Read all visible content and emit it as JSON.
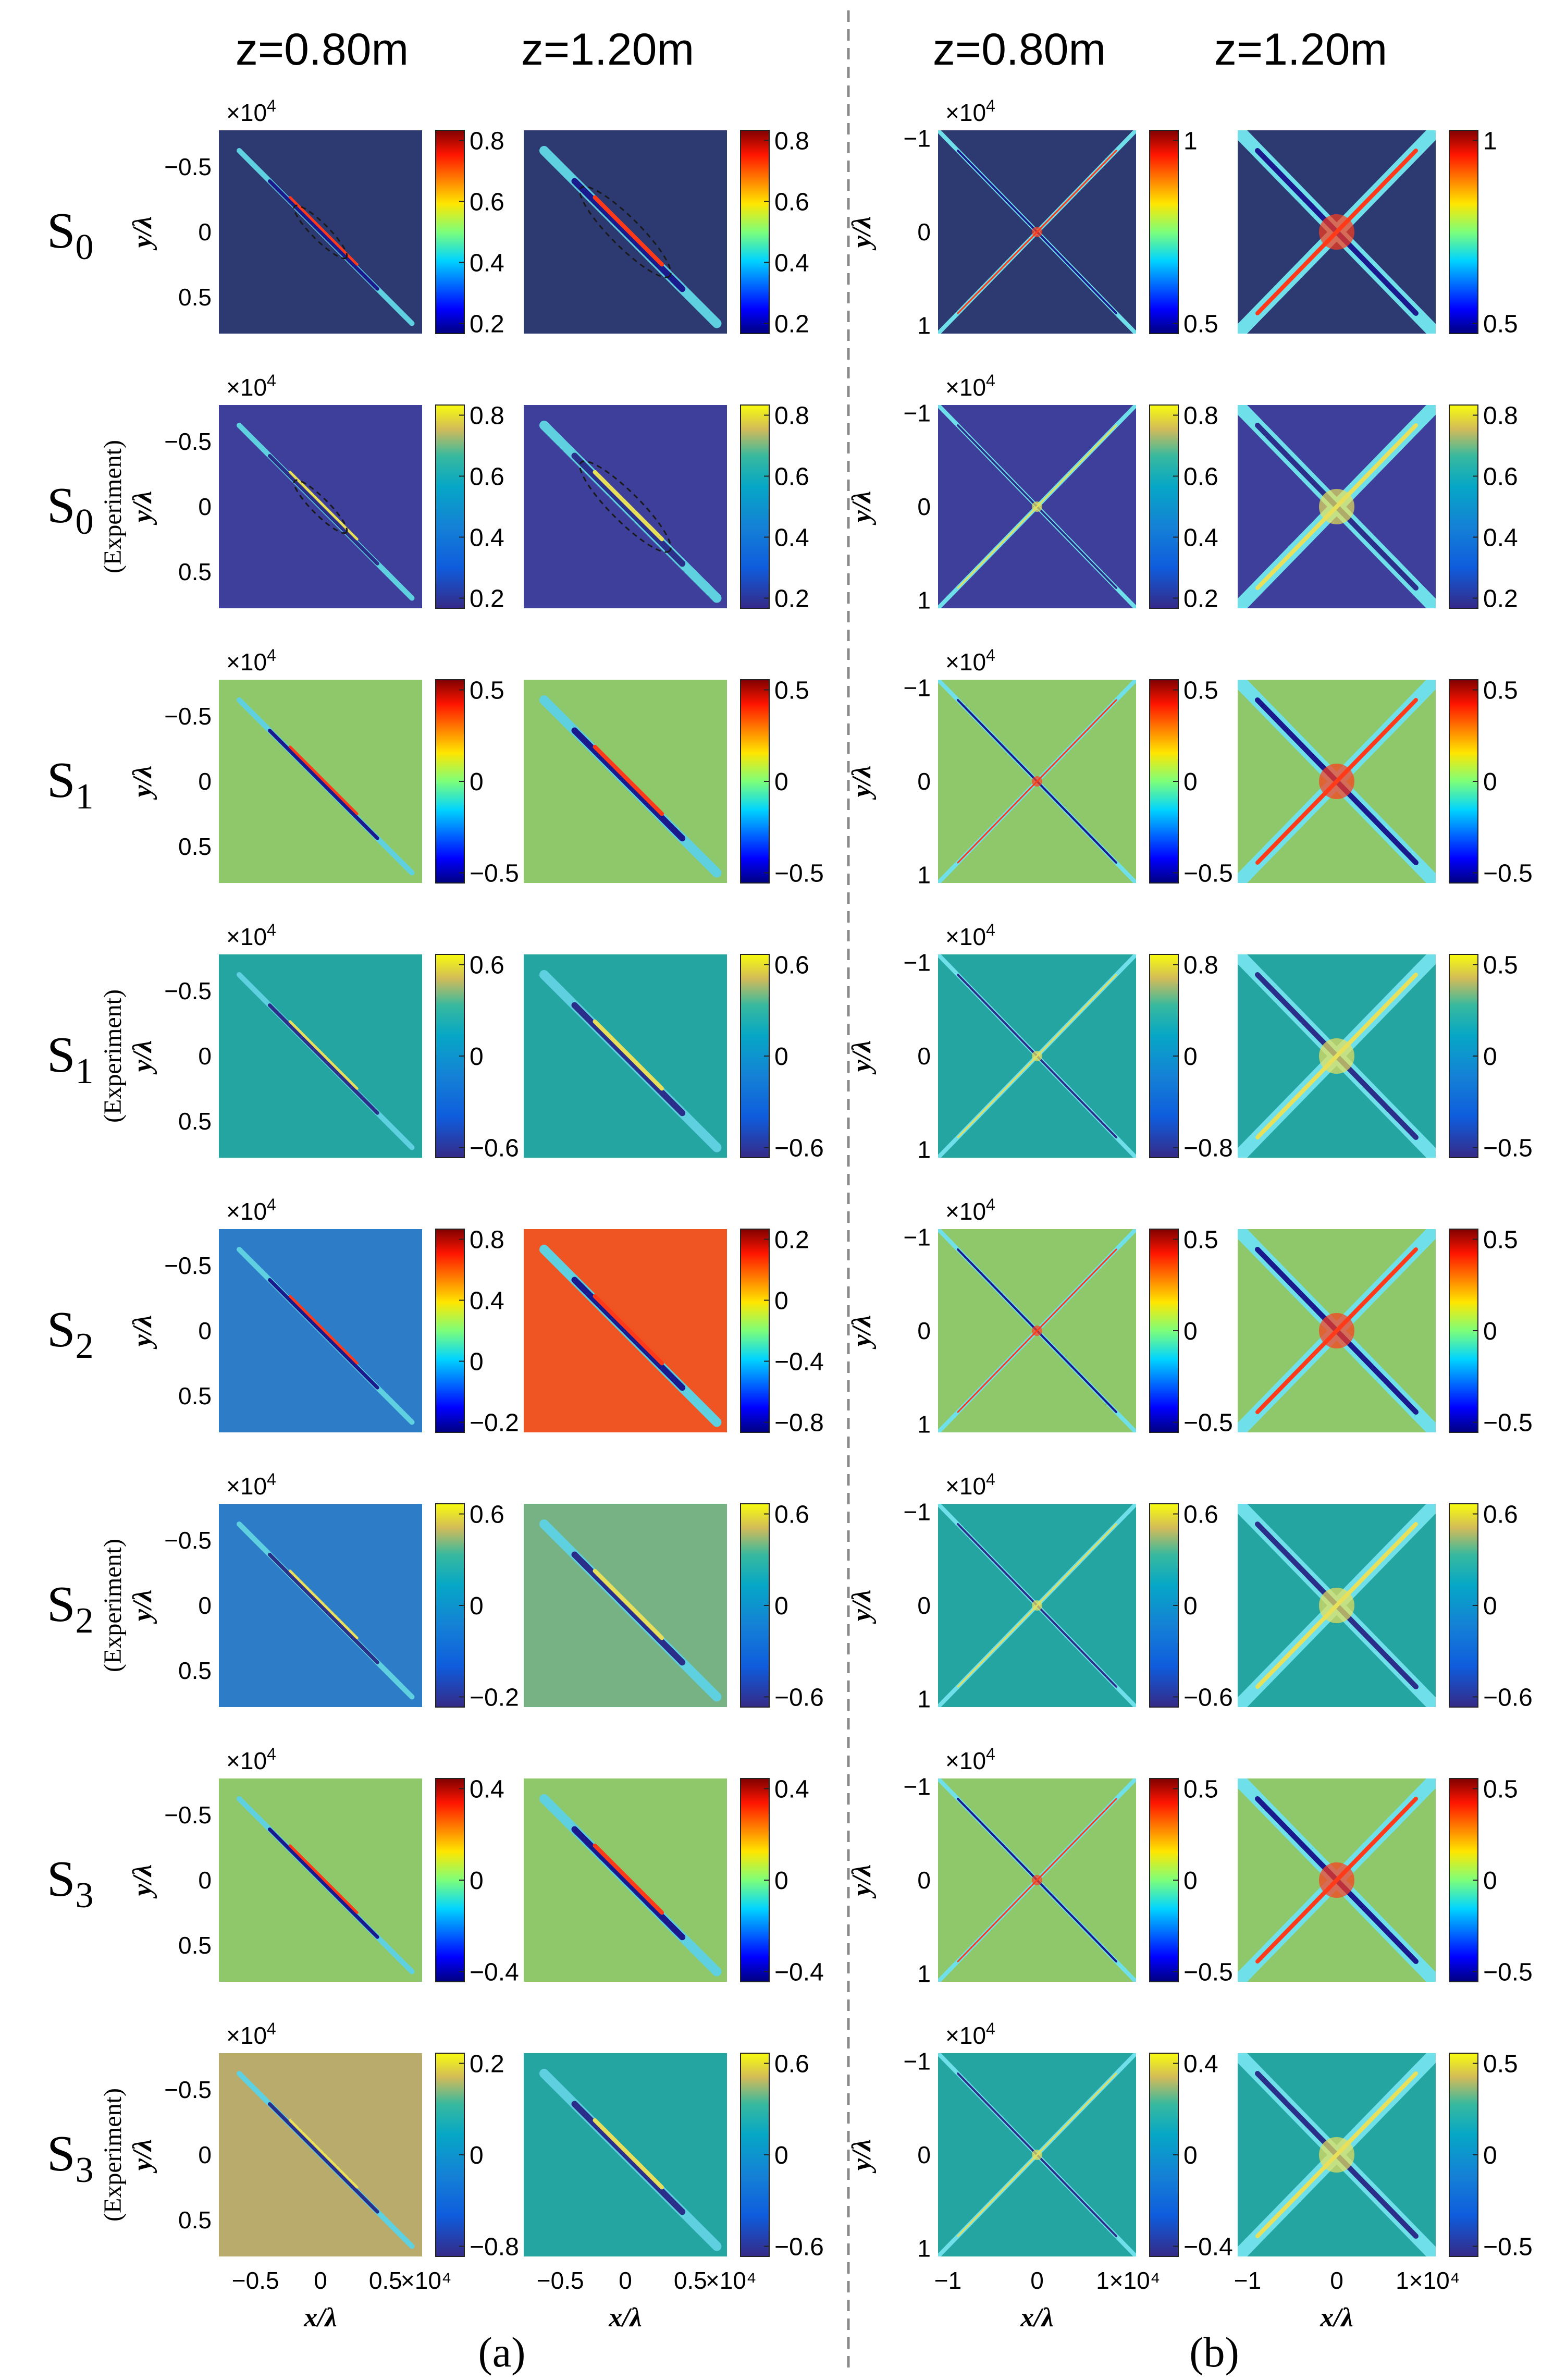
{
  "figure": {
    "column_headers": [
      "z=0.80m",
      "z=1.20m",
      "z=0.80m",
      "z=1.20m"
    ],
    "exp_label": "(Experiment)",
    "y_axis_label": "y/λ",
    "x_axis_label": "x/λ",
    "exponent_label": "×10",
    "exponent_power": "4",
    "panel_a_label": "(a)",
    "panel_b_label": "(b)",
    "colors": {
      "background": "#ffffff",
      "divider": "#8a8a8a",
      "jet_navy": "#2d3a72",
      "jet_green": "#8fc86a",
      "jet_red": "#ee5522",
      "parula_blue": "#3d3f9a",
      "parula_teal": "#25a5a2",
      "parula_blue2": "#2c7cc8",
      "olive": "#b8ab6c",
      "sage": "#77b285"
    }
  },
  "chart_data": {
    "type": "heatmap",
    "panels": {
      "a": {
        "x_ticks": [
          "−0.5",
          "0",
          "0.5",
          "×10⁴"
        ],
        "y_ticks": [
          "−0.5",
          "0",
          "0.5"
        ]
      },
      "b": {
        "x_ticks": [
          "−1",
          "0",
          "1×10⁴"
        ],
        "y_ticks": [
          "−1",
          "0",
          "1"
        ]
      }
    },
    "rows": [
      {
        "label": "S",
        "subscript": "0",
        "experiment": false,
        "maps": [
          {
            "panel": "a",
            "z": "z=0.80m",
            "colorbar_ticks": [
              "0.8",
              "0.6",
              "0.4",
              "0.2"
            ]
          },
          {
            "panel": "a",
            "z": "z=1.20m",
            "colorbar_ticks": [
              "0.8",
              "0.6",
              "0.4",
              "0.2"
            ]
          },
          {
            "panel": "b",
            "z": "z=0.80m",
            "colorbar_ticks": [
              "1",
              "0.5"
            ]
          },
          {
            "panel": "b",
            "z": "z=1.20m",
            "colorbar_ticks": [
              "1",
              "0.5"
            ]
          }
        ]
      },
      {
        "label": "S",
        "subscript": "0",
        "experiment": true,
        "maps": [
          {
            "panel": "a",
            "z": "z=0.80m",
            "colorbar_ticks": [
              "0.8",
              "0.6",
              "0.4",
              "0.2"
            ]
          },
          {
            "panel": "a",
            "z": "z=1.20m",
            "colorbar_ticks": [
              "0.8",
              "0.6",
              "0.4",
              "0.2"
            ]
          },
          {
            "panel": "b",
            "z": "z=0.80m",
            "colorbar_ticks": [
              "0.8",
              "0.6",
              "0.4",
              "0.2"
            ]
          },
          {
            "panel": "b",
            "z": "z=1.20m",
            "colorbar_ticks": [
              "0.8",
              "0.6",
              "0.4",
              "0.2"
            ]
          }
        ]
      },
      {
        "label": "S",
        "subscript": "1",
        "experiment": false,
        "maps": [
          {
            "panel": "a",
            "z": "z=0.80m",
            "colorbar_ticks": [
              "0.5",
              "0",
              "−0.5"
            ]
          },
          {
            "panel": "a",
            "z": "z=1.20m",
            "colorbar_ticks": [
              "0.5",
              "0",
              "−0.5"
            ]
          },
          {
            "panel": "b",
            "z": "z=0.80m",
            "colorbar_ticks": [
              "0.5",
              "0",
              "−0.5"
            ]
          },
          {
            "panel": "b",
            "z": "z=1.20m",
            "colorbar_ticks": [
              "0.5",
              "0",
              "−0.5"
            ]
          }
        ]
      },
      {
        "label": "S",
        "subscript": "1",
        "experiment": true,
        "maps": [
          {
            "panel": "a",
            "z": "z=0.80m",
            "colorbar_ticks": [
              "0.6",
              "0",
              "−0.6"
            ]
          },
          {
            "panel": "a",
            "z": "z=1.20m",
            "colorbar_ticks": [
              "0.6",
              "0",
              "−0.6"
            ]
          },
          {
            "panel": "b",
            "z": "z=0.80m",
            "colorbar_ticks": [
              "0.8",
              "0",
              "−0.8"
            ]
          },
          {
            "panel": "b",
            "z": "z=1.20m",
            "colorbar_ticks": [
              "0.5",
              "0",
              "−0.5"
            ]
          }
        ]
      },
      {
        "label": "S",
        "subscript": "2",
        "experiment": false,
        "maps": [
          {
            "panel": "a",
            "z": "z=0.80m",
            "colorbar_ticks": [
              "0.8",
              "0.4",
              "0",
              "−0.2"
            ]
          },
          {
            "panel": "a",
            "z": "z=1.20m",
            "colorbar_ticks": [
              "0.2",
              "0",
              "−0.4",
              "−0.8"
            ]
          },
          {
            "panel": "b",
            "z": "z=0.80m",
            "colorbar_ticks": [
              "0.5",
              "0",
              "−0.5"
            ]
          },
          {
            "panel": "b",
            "z": "z=1.20m",
            "colorbar_ticks": [
              "0.5",
              "0",
              "−0.5"
            ]
          }
        ]
      },
      {
        "label": "S",
        "subscript": "2",
        "experiment": true,
        "maps": [
          {
            "panel": "a",
            "z": "z=0.80m",
            "colorbar_ticks": [
              "0.6",
              "0",
              "−0.2"
            ]
          },
          {
            "panel": "a",
            "z": "z=1.20m",
            "colorbar_ticks": [
              "0.6",
              "0",
              "−0.6"
            ]
          },
          {
            "panel": "b",
            "z": "z=0.80m",
            "colorbar_ticks": [
              "0.6",
              "0",
              "−0.6"
            ]
          },
          {
            "panel": "b",
            "z": "z=1.20m",
            "colorbar_ticks": [
              "0.6",
              "0",
              "−0.6"
            ]
          }
        ]
      },
      {
        "label": "S",
        "subscript": "3",
        "experiment": false,
        "maps": [
          {
            "panel": "a",
            "z": "z=0.80m",
            "colorbar_ticks": [
              "0.4",
              "0",
              "−0.4"
            ]
          },
          {
            "panel": "a",
            "z": "z=1.20m",
            "colorbar_ticks": [
              "0.4",
              "0",
              "−0.4"
            ]
          },
          {
            "panel": "b",
            "z": "z=0.80m",
            "colorbar_ticks": [
              "0.5",
              "0",
              "−0.5"
            ]
          },
          {
            "panel": "b",
            "z": "z=1.20m",
            "colorbar_ticks": [
              "0.5",
              "0",
              "−0.5"
            ]
          }
        ]
      },
      {
        "label": "S",
        "subscript": "3",
        "experiment": true,
        "maps": [
          {
            "panel": "a",
            "z": "z=0.80m",
            "colorbar_ticks": [
              "0.2",
              "0",
              "−0.8"
            ]
          },
          {
            "panel": "a",
            "z": "z=1.20m",
            "colorbar_ticks": [
              "0.6",
              "0",
              "−0.6"
            ]
          },
          {
            "panel": "b",
            "z": "z=0.80m",
            "colorbar_ticks": [
              "0.4",
              "0",
              "−0.4"
            ]
          },
          {
            "panel": "b",
            "z": "z=1.20m",
            "colorbar_ticks": [
              "0.5",
              "0",
              "−0.5"
            ]
          }
        ]
      }
    ]
  }
}
